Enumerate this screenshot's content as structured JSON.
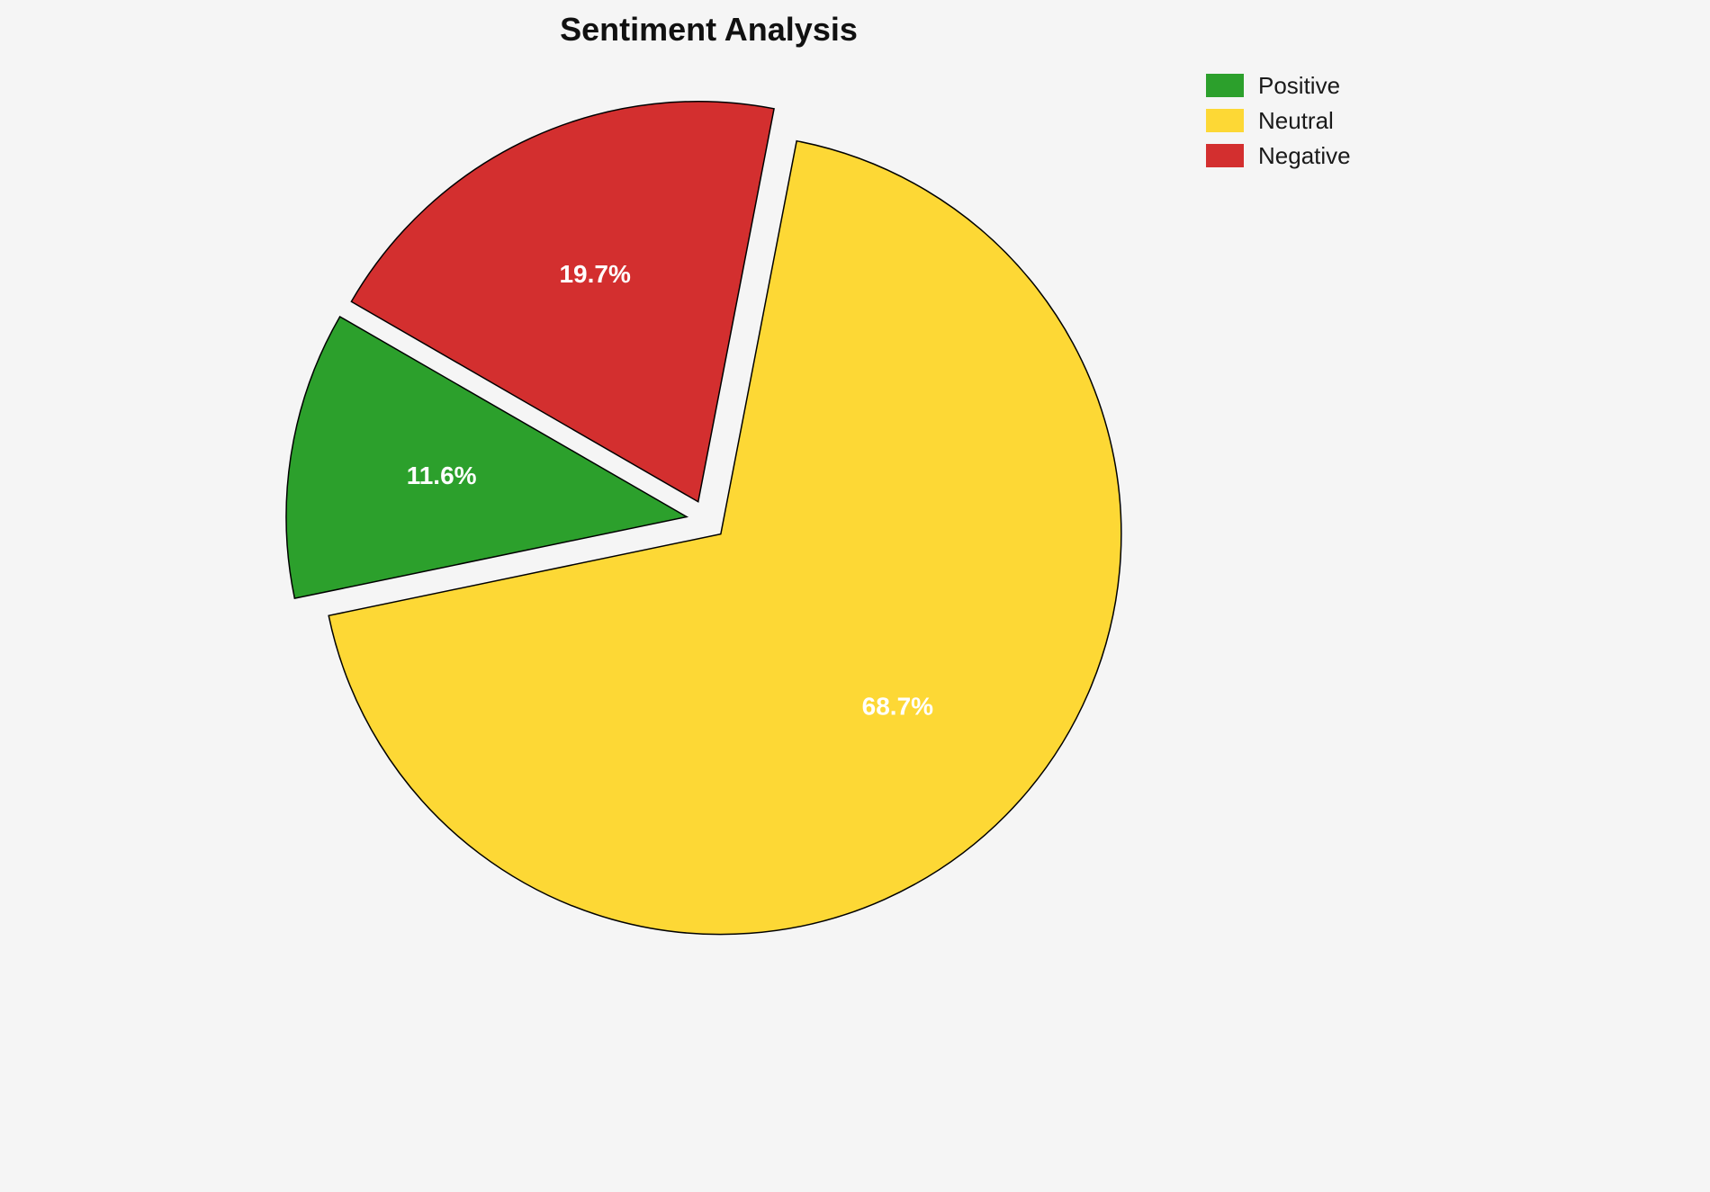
{
  "title": "Sentiment Analysis",
  "background_color": "#f5f5f5",
  "chart_data": {
    "type": "pie",
    "title": "Sentiment Analysis",
    "labels": [
      "Positive",
      "Neutral",
      "Negative"
    ],
    "values": [
      11.6,
      68.7,
      19.7
    ],
    "value_labels": [
      "11.6%",
      "68.7%",
      "19.7%"
    ],
    "colors": [
      "#2ca02c",
      "#fdd835",
      "#d32f2f"
    ],
    "slice_edge_color": "#000000",
    "label_color": "#ffffff",
    "start_angle": 150,
    "counterclockwise": true,
    "explode": 0.05,
    "legend_position": "upper right",
    "legend_entries": [
      "Positive",
      "Neutral",
      "Negative"
    ]
  }
}
